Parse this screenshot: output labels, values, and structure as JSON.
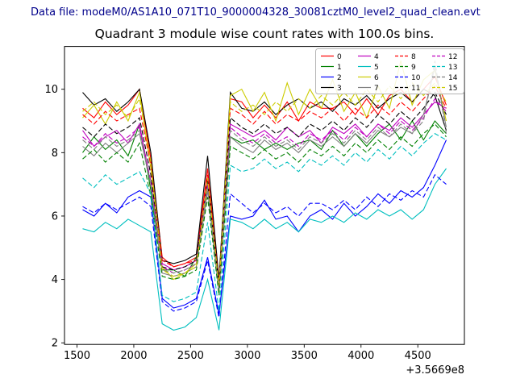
{
  "header": {
    "data_file_label": "Data file: modeM0/AS1A10_071T10_9000004328_30081cztM0_level2_quad_clean.evt"
  },
  "chart_data": {
    "type": "line",
    "title": "Quadrant 3 module wise count rates with 100.0s bins.",
    "xlabel": "",
    "ylabel": "",
    "x_offset_label": "+3.5669e8",
    "xlim": [
      1390,
      4910
    ],
    "ylim": [
      1.95,
      11.35
    ],
    "xticks": [
      1500,
      2000,
      2500,
      3000,
      3500,
      4000,
      4500
    ],
    "yticks": [
      2,
      4,
      6,
      8,
      10
    ],
    "grid": false,
    "legend_position": "upper right",
    "x": [
      1550,
      1650,
      1750,
      1850,
      1950,
      2050,
      2150,
      2250,
      2350,
      2450,
      2550,
      2650,
      2750,
      2850,
      2950,
      3050,
      3150,
      3250,
      3350,
      3450,
      3550,
      3650,
      3750,
      3850,
      3950,
      4050,
      4150,
      4250,
      4350,
      4450,
      4550,
      4650,
      4750
    ],
    "series": [
      {
        "name": "0",
        "color": "#ff0000",
        "linestyle": "solid",
        "values": [
          9.4,
          9.1,
          9.6,
          9.2,
          9.5,
          10.0,
          7.8,
          4.7,
          4.4,
          4.5,
          4.7,
          7.5,
          3.9,
          9.7,
          9.6,
          9.1,
          9.5,
          9.1,
          9.6,
          9.0,
          9.6,
          9.4,
          9.4,
          9.6,
          9.2,
          9.7,
          9.2,
          9.8,
          10.0,
          9.6,
          10.0,
          10.4,
          9.5
        ]
      },
      {
        "name": "1",
        "color": "#008000",
        "linestyle": "solid",
        "values": [
          8.0,
          8.5,
          8.1,
          8.4,
          7.9,
          8.9,
          6.8,
          4.3,
          4.3,
          4.1,
          4.7,
          7.0,
          3.7,
          8.5,
          8.3,
          8.4,
          8.1,
          8.3,
          8.1,
          8.3,
          8.4,
          8.1,
          8.7,
          8.2,
          8.6,
          8.2,
          8.6,
          8.9,
          8.4,
          9.0,
          8.4,
          9.0,
          8.6
        ]
      },
      {
        "name": "2",
        "color": "#0000ff",
        "linestyle": "solid",
        "values": [
          6.2,
          6.0,
          6.4,
          6.1,
          6.6,
          6.8,
          6.6,
          3.4,
          3.1,
          3.2,
          3.4,
          4.7,
          2.9,
          6.0,
          5.9,
          6.0,
          6.5,
          5.9,
          6.0,
          5.5,
          6.0,
          6.2,
          5.9,
          6.4,
          6.0,
          6.3,
          6.7,
          6.4,
          6.8,
          6.6,
          6.9,
          7.6,
          8.4
        ]
      },
      {
        "name": "3",
        "color": "#000000",
        "linestyle": "solid",
        "values": [
          9.9,
          9.5,
          9.7,
          9.3,
          9.6,
          10.0,
          8.0,
          4.6,
          4.5,
          4.6,
          4.8,
          7.9,
          4.0,
          9.9,
          9.4,
          9.3,
          9.6,
          9.2,
          9.5,
          9.7,
          9.4,
          9.6,
          9.3,
          9.7,
          9.5,
          9.8,
          9.4,
          9.7,
          9.9,
          9.6,
          10.0,
          9.8,
          8.7
        ]
      },
      {
        "name": "4",
        "color": "#bf00bf",
        "linestyle": "solid",
        "values": [
          8.7,
          8.2,
          8.5,
          8.7,
          8.3,
          8.9,
          7.0,
          4.5,
          4.3,
          4.4,
          4.6,
          7.2,
          3.8,
          8.9,
          8.7,
          8.5,
          8.7,
          8.4,
          8.8,
          8.5,
          8.7,
          8.3,
          8.8,
          8.6,
          8.9,
          8.5,
          8.9,
          8.7,
          9.1,
          8.8,
          9.2,
          9.6,
          9.4
        ]
      },
      {
        "name": "5",
        "color": "#00bfbf",
        "linestyle": "solid",
        "values": [
          5.6,
          5.5,
          5.8,
          5.6,
          5.9,
          5.7,
          5.5,
          2.6,
          2.4,
          2.5,
          2.8,
          4.0,
          2.4,
          5.9,
          5.8,
          5.6,
          5.9,
          5.6,
          5.8,
          5.5,
          5.9,
          5.8,
          6.0,
          5.8,
          6.1,
          5.9,
          6.2,
          6.0,
          6.2,
          5.9,
          6.2,
          7.0,
          7.5
        ]
      },
      {
        "name": "6",
        "color": "#cccc00",
        "linestyle": "solid",
        "values": [
          9.1,
          9.5,
          8.9,
          9.6,
          9.0,
          9.9,
          7.5,
          4.4,
          4.0,
          4.2,
          4.5,
          7.0,
          3.6,
          9.8,
          10.0,
          9.3,
          9.9,
          9.0,
          10.2,
          9.2,
          10.0,
          9.4,
          10.3,
          9.3,
          9.9,
          9.1,
          10.1,
          9.4,
          10.9,
          9.5,
          10.3,
          10.6,
          9.0
        ]
      },
      {
        "name": "7",
        "color": "#808080",
        "linestyle": "solid",
        "values": [
          8.2,
          7.9,
          8.3,
          8.0,
          8.3,
          8.6,
          7.0,
          4.2,
          4.1,
          4.2,
          4.4,
          6.8,
          3.6,
          8.5,
          8.2,
          8.0,
          8.4,
          8.1,
          8.3,
          8.0,
          8.4,
          8.2,
          8.5,
          8.2,
          8.6,
          8.3,
          8.7,
          8.5,
          8.8,
          8.6,
          9.2,
          10.7,
          8.8
        ]
      },
      {
        "name": "8",
        "color": "#ff0000",
        "linestyle": "dashed",
        "values": [
          9.2,
          8.9,
          9.3,
          9.0,
          9.2,
          9.4,
          7.6,
          4.6,
          4.4,
          4.5,
          4.6,
          7.3,
          3.9,
          9.4,
          9.2,
          8.9,
          9.3,
          8.9,
          9.2,
          9.0,
          9.3,
          9.1,
          9.4,
          9.0,
          9.4,
          9.1,
          9.5,
          9.2,
          9.6,
          9.3,
          9.7,
          10.1,
          9.4
        ]
      },
      {
        "name": "9",
        "color": "#008000",
        "linestyle": "dashed",
        "values": [
          7.8,
          8.1,
          7.7,
          8.0,
          7.7,
          8.3,
          6.6,
          4.1,
          4.0,
          4.1,
          4.3,
          6.6,
          3.5,
          8.2,
          8.0,
          7.8,
          8.1,
          7.8,
          8.0,
          7.7,
          8.1,
          7.9,
          8.2,
          7.9,
          8.3,
          8.0,
          8.4,
          8.1,
          8.5,
          8.2,
          8.6,
          8.9,
          8.5
        ]
      },
      {
        "name": "10",
        "color": "#0000ff",
        "linestyle": "dashed",
        "values": [
          6.3,
          6.1,
          6.4,
          6.2,
          6.4,
          6.6,
          6.3,
          3.3,
          3.0,
          3.1,
          3.3,
          4.6,
          2.8,
          6.7,
          6.4,
          6.1,
          6.4,
          6.1,
          6.3,
          6.0,
          6.4,
          6.4,
          6.2,
          6.5,
          6.2,
          6.6,
          6.3,
          6.7,
          6.5,
          6.8,
          6.6,
          7.3,
          7.0
        ]
      },
      {
        "name": "11",
        "color": "#000000",
        "linestyle": "dashed",
        "values": [
          8.8,
          8.5,
          8.9,
          8.6,
          8.8,
          9.1,
          7.3,
          4.4,
          4.3,
          4.4,
          4.6,
          7.1,
          3.8,
          9.1,
          8.8,
          8.6,
          8.9,
          8.6,
          8.8,
          8.5,
          8.9,
          8.7,
          9.0,
          8.7,
          9.1,
          8.8,
          9.2,
          8.9,
          9.3,
          9.0,
          9.4,
          9.9,
          9.2
        ]
      },
      {
        "name": "12",
        "color": "#bf00bf",
        "linestyle": "dashed",
        "values": [
          8.5,
          8.2,
          8.6,
          8.3,
          8.5,
          8.8,
          7.1,
          4.4,
          4.2,
          4.3,
          4.5,
          7.0,
          3.7,
          8.8,
          8.5,
          8.3,
          8.6,
          8.3,
          8.5,
          8.2,
          8.6,
          8.4,
          8.7,
          8.4,
          8.8,
          8.5,
          8.9,
          8.6,
          9.0,
          8.7,
          9.1,
          9.7,
          9.3
        ]
      },
      {
        "name": "13",
        "color": "#00bfbf",
        "linestyle": "dashed",
        "values": [
          7.2,
          6.9,
          7.3,
          7.0,
          7.2,
          7.4,
          6.7,
          3.5,
          3.3,
          3.4,
          3.6,
          5.8,
          3.0,
          7.6,
          7.4,
          7.5,
          7.8,
          7.5,
          7.7,
          7.4,
          7.8,
          7.6,
          7.9,
          7.6,
          8.0,
          7.7,
          8.1,
          7.8,
          8.2,
          7.9,
          8.3,
          8.6,
          8.4
        ]
      },
      {
        "name": "14",
        "color": "#808080",
        "linestyle": "dashed",
        "values": [
          8.4,
          8.1,
          8.5,
          8.2,
          8.4,
          8.7,
          7.0,
          4.3,
          4.2,
          4.3,
          4.5,
          6.9,
          3.7,
          8.7,
          8.4,
          8.2,
          8.5,
          8.2,
          8.4,
          8.1,
          8.5,
          8.3,
          8.6,
          8.3,
          8.7,
          8.4,
          8.8,
          8.5,
          8.9,
          8.6,
          9.0,
          10.9,
          8.6
        ]
      },
      {
        "name": "15",
        "color": "#cccc00",
        "linestyle": "dashed",
        "values": [
          9.3,
          9.6,
          9.2,
          9.5,
          9.1,
          9.7,
          7.7,
          4.3,
          4.1,
          4.2,
          4.4,
          7.2,
          3.8,
          9.6,
          9.3,
          9.5,
          9.2,
          9.6,
          9.3,
          9.7,
          9.4,
          9.8,
          9.5,
          9.9,
          9.5,
          10.0,
          9.6,
          10.1,
          9.7,
          10.2,
          9.8,
          10.2,
          9.6
        ]
      }
    ]
  }
}
